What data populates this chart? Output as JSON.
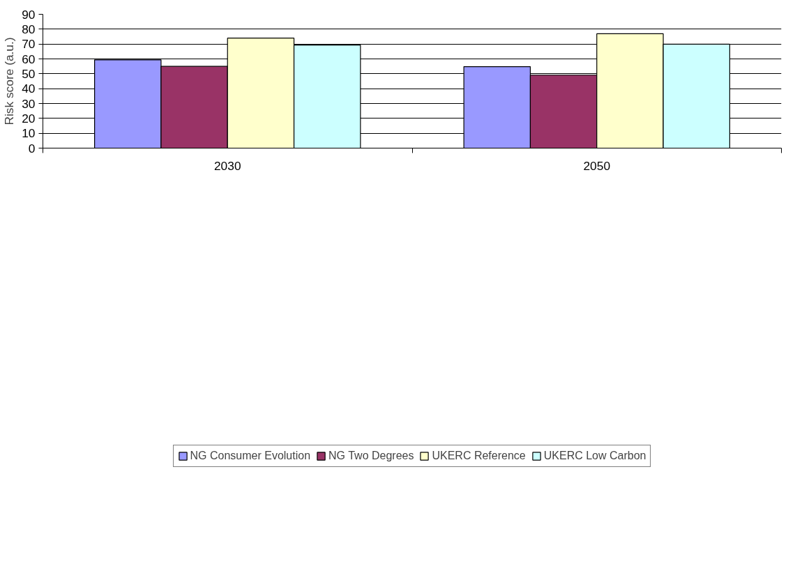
{
  "chart_data": {
    "type": "bar",
    "ylabel": "Risk score (a.u.)",
    "categories": [
      "2030",
      "2050"
    ],
    "series": [
      {
        "name": "NG Consumer Evolution",
        "color": "#9999ff",
        "values": [
          59.4,
          54.8
        ]
      },
      {
        "name": "NG Two Degrees",
        "color": "#993366",
        "values": [
          55.0,
          49.1
        ]
      },
      {
        "name": "UKERC Reference",
        "color": "#ffffcc",
        "values": [
          74.0,
          76.9
        ]
      },
      {
        "name": "UKERC Low Carbon",
        "color": "#ccffff",
        "values": [
          69.3,
          69.9
        ]
      }
    ],
    "ylim": [
      0,
      90
    ],
    "yticks": [
      0,
      10,
      20,
      30,
      40,
      50,
      60,
      70,
      80,
      90
    ],
    "grid": "y",
    "legend": "bottom"
  }
}
